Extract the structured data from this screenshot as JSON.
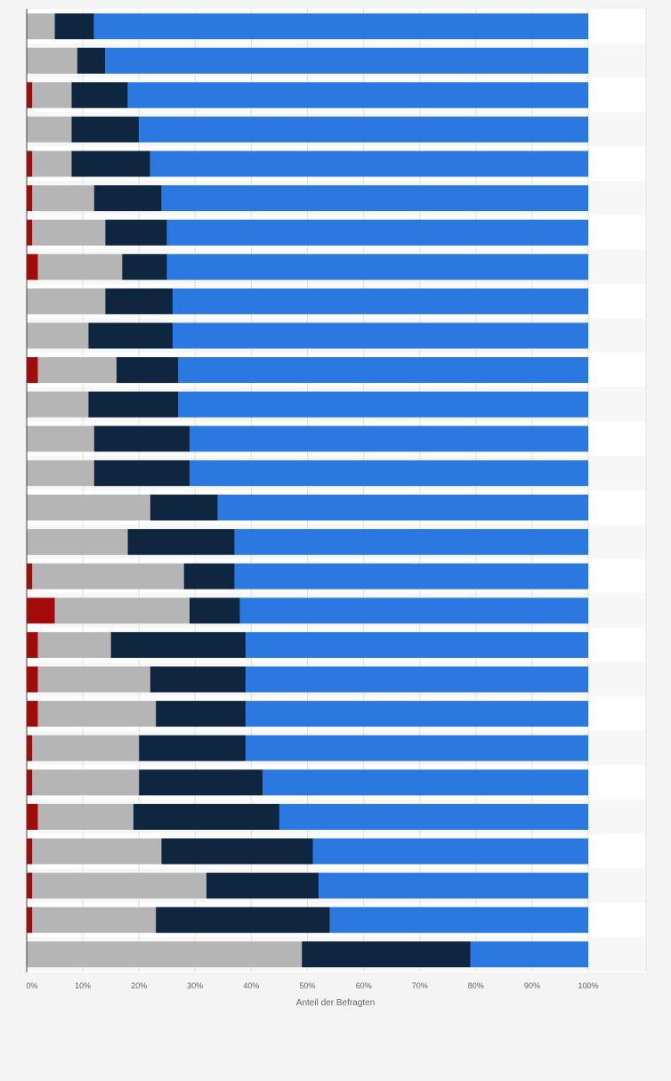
{
  "chart_data": {
    "type": "bar",
    "orientation": "horizontal",
    "stacked": true,
    "xlabel": "Anteil der Befragten",
    "xlim": [
      0,
      100
    ],
    "x_ticks": [
      "0%",
      "10%",
      "20%",
      "30%",
      "40%",
      "50%",
      "60%",
      "70%",
      "80%",
      "90%",
      "100%"
    ],
    "grid": true,
    "legend": "none",
    "colors": [
      "#a50a0a",
      "#b5b5b5",
      "#0f2640",
      "#2a78e0"
    ],
    "series": [
      {
        "values": [
          0,
          0,
          1,
          0,
          1,
          1,
          1,
          2,
          0,
          0,
          2,
          0,
          0,
          0,
          0,
          0,
          1,
          5,
          2,
          2,
          2,
          1,
          1,
          2,
          1,
          1,
          1,
          0
        ]
      },
      {
        "values": [
          5,
          9,
          7,
          8,
          7,
          11,
          13,
          15,
          14,
          11,
          14,
          11,
          12,
          12,
          22,
          18,
          27,
          24,
          13,
          20,
          21,
          19,
          19,
          17,
          23,
          31,
          22,
          49
        ]
      },
      {
        "values": [
          7,
          5,
          10,
          12,
          14,
          12,
          11,
          8,
          12,
          15,
          11,
          16,
          17,
          17,
          12,
          19,
          9,
          9,
          24,
          17,
          16,
          19,
          22,
          26,
          27,
          20,
          31,
          30
        ]
      },
      {
        "values": [
          88,
          86,
          82,
          80,
          78,
          76,
          75,
          75,
          74,
          74,
          73,
          73,
          71,
          71,
          66,
          63,
          63,
          62,
          61,
          61,
          61,
          61,
          58,
          55,
          49,
          48,
          46,
          21
        ]
      }
    ]
  }
}
